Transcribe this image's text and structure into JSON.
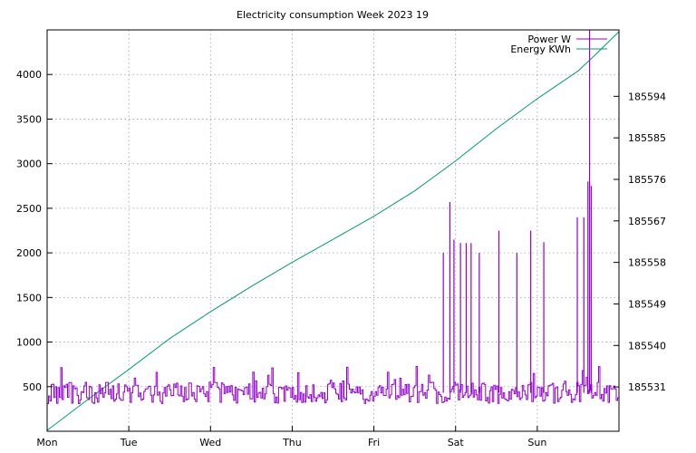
{
  "chart_data": {
    "type": "line",
    "title": "Electricity consumption Week 2023 19",
    "xlabel": "",
    "ylabel": "",
    "x_tick_labels": [
      "Mon",
      "Tue",
      "Wed",
      "Thu",
      "Fri",
      "Sat",
      "Sun"
    ],
    "xlim": [
      0,
      7
    ],
    "y_left": {
      "lim": [
        0,
        4500
      ],
      "ticks": [
        500,
        1000,
        1500,
        2000,
        2500,
        3000,
        3500,
        4000
      ]
    },
    "y_right": {
      "lim": [
        185521.4,
        185608.4
      ],
      "ticks": [
        185531,
        185540,
        185549,
        185558,
        185567,
        185576,
        185585,
        185594
      ]
    },
    "grid": true,
    "legend_position": "top-right",
    "colors": {
      "power": "#9400d3",
      "energy": "#009e73"
    },
    "series": [
      {
        "name": "Power W",
        "axis": "left",
        "baseline": 430,
        "spikes": [
          {
            "x": 4.85,
            "y": 2000
          },
          {
            "x": 4.93,
            "y": 2570
          },
          {
            "x": 4.98,
            "y": 2150
          },
          {
            "x": 5.06,
            "y": 2110
          },
          {
            "x": 5.13,
            "y": 2110
          },
          {
            "x": 5.19,
            "y": 2110
          },
          {
            "x": 5.29,
            "y": 2000
          },
          {
            "x": 5.53,
            "y": 2250
          },
          {
            "x": 5.75,
            "y": 2000
          },
          {
            "x": 5.92,
            "y": 2250
          },
          {
            "x": 6.08,
            "y": 2120
          },
          {
            "x": 6.49,
            "y": 2400
          },
          {
            "x": 6.57,
            "y": 2400
          },
          {
            "x": 6.62,
            "y": 2800
          },
          {
            "x": 6.64,
            "y": 4600
          },
          {
            "x": 6.66,
            "y": 2750
          }
        ]
      },
      {
        "name": "Energy KWh",
        "axis": "right",
        "x": [
          0,
          0.5,
          1.0,
          1.5,
          2.0,
          2.5,
          3.0,
          3.5,
          4.0,
          4.5,
          5.0,
          5.5,
          6.0,
          6.5,
          6.65,
          7.0
        ],
        "y": [
          185521.6,
          185528.3,
          185534.8,
          185541.5,
          185547.3,
          185552.8,
          185558.0,
          185563.0,
          185568.0,
          185573.5,
          185580.0,
          185587.0,
          185593.5,
          185599.5,
          185602.0,
          185608.0
        ]
      }
    ]
  }
}
